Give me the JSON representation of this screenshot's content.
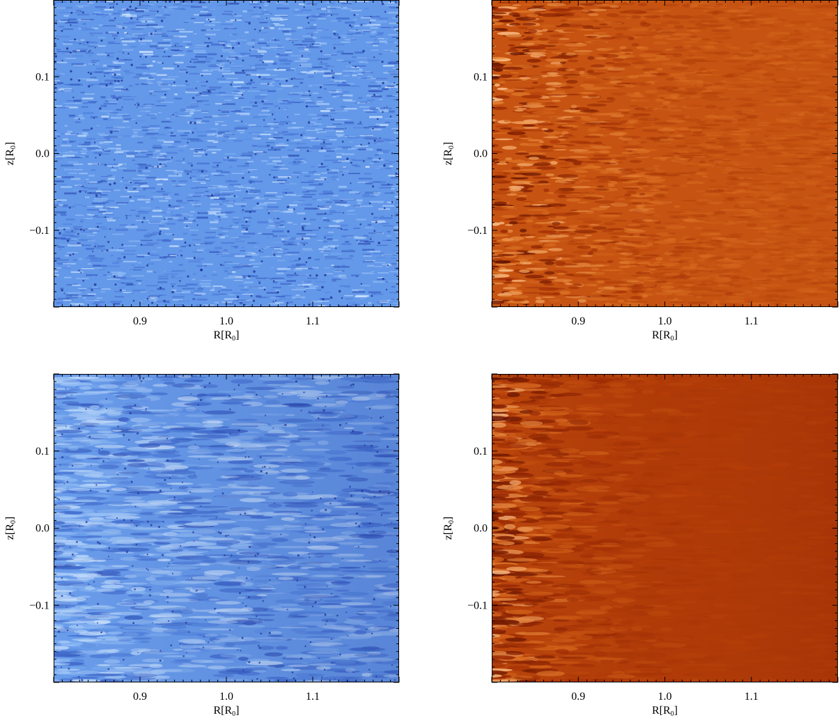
{
  "chart_data": [
    {
      "type": "heatmap",
      "id": "top-left",
      "colormap": "blue",
      "colors": [
        "#1a2f8f",
        "#3b63c9",
        "#5a90e6",
        "#8cbaf5",
        "#d8ecff"
      ],
      "texture": "fine-speckle",
      "xlabel_main": "R[R",
      "xlabel_sub": "0",
      "xlabel_end": "]",
      "ylabel_main": "z[R",
      "ylabel_sub": "0",
      "ylabel_end": "]",
      "xlim": [
        0.8,
        1.2
      ],
      "ylim": [
        -0.2,
        0.2
      ],
      "xticks": [
        {
          "value": 0.9,
          "label": "0.9"
        },
        {
          "value": 1.0,
          "label": "1.0"
        },
        {
          "value": 1.1,
          "label": "1.1"
        }
      ],
      "yticks": [
        {
          "value": 0.1,
          "label": "0.1"
        },
        {
          "value": 0.0,
          "label": "0.0"
        },
        {
          "value": -0.1,
          "label": "−0.1"
        }
      ]
    },
    {
      "type": "heatmap",
      "id": "top-right",
      "colormap": "orange",
      "colors": [
        "#5a0f00",
        "#9a2a04",
        "#c4500f",
        "#e07a2a",
        "#ffc690"
      ],
      "texture": "horizontal-streaks-left-strong",
      "xlabel_main": "R[R",
      "xlabel_sub": "0",
      "xlabel_end": "]",
      "ylabel_main": "z[R",
      "ylabel_sub": "0",
      "ylabel_end": "]",
      "xlim": [
        0.8,
        1.2
      ],
      "ylim": [
        -0.2,
        0.2
      ],
      "xticks": [
        {
          "value": 0.9,
          "label": "0.9"
        },
        {
          "value": 1.0,
          "label": "1.0"
        },
        {
          "value": 1.1,
          "label": "1.1"
        }
      ],
      "yticks": [
        {
          "value": 0.1,
          "label": "0.1"
        },
        {
          "value": 0.0,
          "label": "0.0"
        },
        {
          "value": -0.1,
          "label": "−0.1"
        }
      ]
    },
    {
      "type": "heatmap",
      "id": "bottom-left",
      "colormap": "blue",
      "colors": [
        "#1a2f8f",
        "#3b63c9",
        "#5a90e6",
        "#8cbaf5",
        "#d8ecff"
      ],
      "texture": "elongated-speckle-lighter-left",
      "xlabel_main": "R[R",
      "xlabel_sub": "0",
      "xlabel_end": "]",
      "ylabel_main": "z[R",
      "ylabel_sub": "0",
      "ylabel_end": "]",
      "xlim": [
        0.8,
        1.2
      ],
      "ylim": [
        -0.2,
        0.2
      ],
      "xticks": [
        {
          "value": 0.9,
          "label": "0.9"
        },
        {
          "value": 1.0,
          "label": "1.0"
        },
        {
          "value": 1.1,
          "label": "1.1"
        }
      ],
      "yticks": [
        {
          "value": 0.1,
          "label": "0.1"
        },
        {
          "value": 0.0,
          "label": "0.0"
        },
        {
          "value": -0.1,
          "label": "−0.1"
        }
      ]
    },
    {
      "type": "heatmap",
      "id": "bottom-right",
      "colormap": "orange",
      "colors": [
        "#5a0f00",
        "#9a2a04",
        "#b9420a",
        "#d86a1e",
        "#ffc690"
      ],
      "texture": "horizontal-streaks-left-only-smooth-right",
      "xlabel_main": "R[R",
      "xlabel_sub": "0",
      "xlabel_end": "]",
      "ylabel_main": "z[R",
      "ylabel_sub": "0",
      "ylabel_end": "]",
      "xlim": [
        0.8,
        1.2
      ],
      "ylim": [
        -0.2,
        0.2
      ],
      "xticks": [
        {
          "value": 0.9,
          "label": "0.9"
        },
        {
          "value": 1.0,
          "label": "1.0"
        },
        {
          "value": 1.1,
          "label": "1.1"
        }
      ],
      "yticks": [
        {
          "value": 0.1,
          "label": "0.1"
        },
        {
          "value": 0.0,
          "label": "0.0"
        },
        {
          "value": -0.1,
          "label": "−0.1"
        }
      ]
    }
  ]
}
